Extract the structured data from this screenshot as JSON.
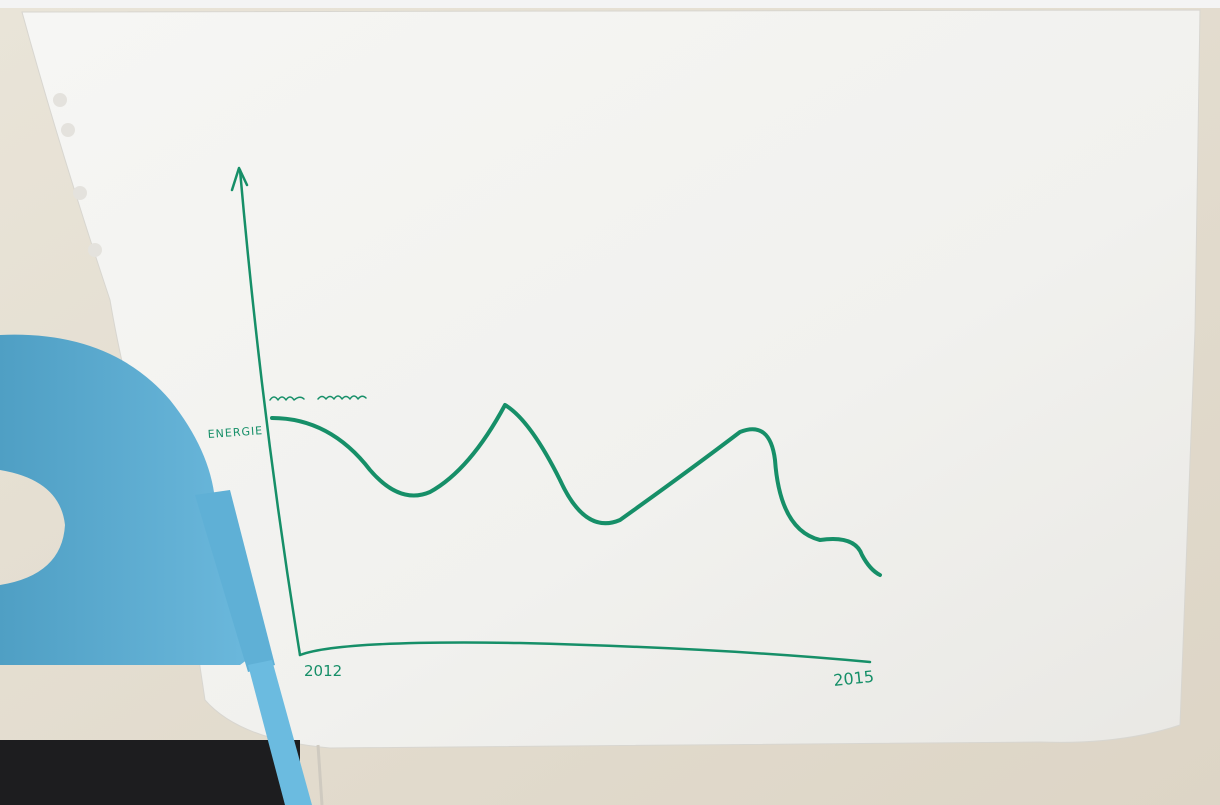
{
  "labels": {
    "y_axis": "ENERGIE",
    "x_start": "2012",
    "x_end": "2015"
  }
}
